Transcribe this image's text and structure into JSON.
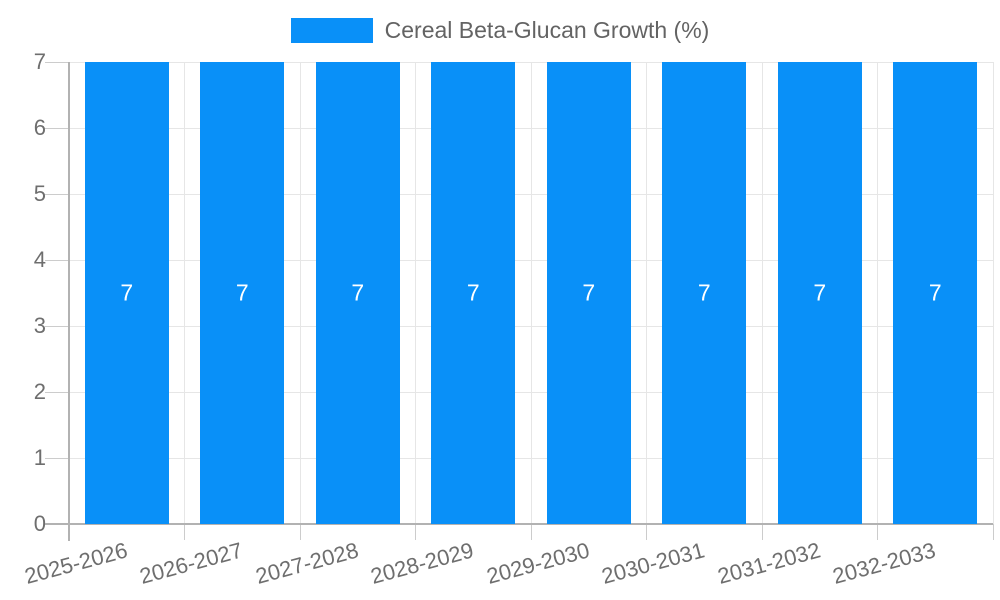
{
  "legend": {
    "label": "Cereal Beta-Glucan Growth (%)"
  },
  "chart_data": {
    "type": "bar",
    "title": "Cereal Beta-Glucan Growth (%)",
    "categories": [
      "2025-2026",
      "2026-2027",
      "2027-2028",
      "2028-2029",
      "2029-2030",
      "2030-2031",
      "2031-2032",
      "2032-2033"
    ],
    "series": [
      {
        "name": "Cereal Beta-Glucan Growth (%)",
        "values": [
          7,
          7,
          7,
          7,
          7,
          7,
          7,
          7
        ]
      }
    ],
    "bar_labels": [
      "7",
      "7",
      "7",
      "7",
      "7",
      "7",
      "7",
      "7"
    ],
    "xlabel": "",
    "ylabel": "",
    "ylim": [
      0,
      7
    ],
    "yticks": [
      0,
      1,
      2,
      3,
      4,
      5,
      6,
      7
    ],
    "grid": true,
    "legend_position": "top-center",
    "x_tick_rotation_deg": -15
  },
  "colors": {
    "bar": "#0990f8",
    "gridline": "#e6e6e6",
    "axis": "#b2b2b2",
    "tick": "#cccccc",
    "label": "#6e6e6e",
    "bar_label": "#ffffff",
    "background": "#ffffff"
  }
}
